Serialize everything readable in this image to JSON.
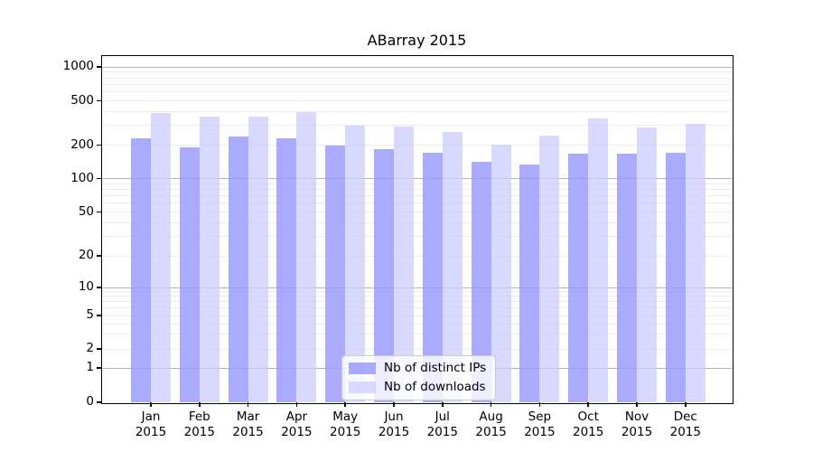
{
  "title": "ABarray 2015",
  "legend": {
    "items": [
      {
        "label": "Nb of distinct IPs"
      },
      {
        "label": "Nb of downloads"
      }
    ]
  },
  "colors": {
    "distinct_ips_bar": "rgba(153,153,255,0.83)",
    "downloads_bar": "rgba(204,204,255,0.75)",
    "grid_major": "#b2b2b2",
    "grid_minor": "#ececec",
    "axis": "#000000",
    "legend_border": "#cccccc"
  },
  "chart_data": {
    "type": "bar",
    "title": "ABarray 2015",
    "categories": [
      "Jan 2015",
      "Feb 2015",
      "Mar 2015",
      "Apr 2015",
      "May 2015",
      "Jun 2015",
      "Jul 2015",
      "Aug 2015",
      "Sep 2015",
      "Oct 2015",
      "Nov 2015",
      "Dec 2015"
    ],
    "series": [
      {
        "name": "Nb of distinct IPs",
        "color": "rgba(153,153,255,0.83)",
        "values": [
          228,
          190,
          237,
          230,
          200,
          183,
          172,
          143,
          134,
          167,
          168,
          172
        ]
      },
      {
        "name": "Nb of downloads",
        "color": "rgba(204,204,255,0.75)",
        "values": [
          390,
          362,
          362,
          398,
          301,
          293,
          262,
          201,
          245,
          348,
          288,
          312
        ]
      }
    ],
    "yscale": "symlog",
    "yticks": [
      0,
      1,
      2,
      5,
      10,
      20,
      50,
      100,
      200,
      500,
      1000
    ],
    "ylim": [
      0,
      1120
    ],
    "grid": true,
    "legend_position": "lower center"
  }
}
